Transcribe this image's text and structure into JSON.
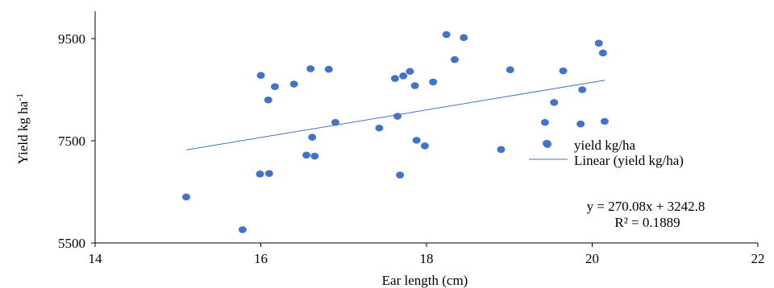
{
  "chart_data": {
    "type": "scatter",
    "xlabel": "Ear length (cm)",
    "ylabel_main": "Yield kg ha",
    "ylabel_sup": "-1",
    "xlim": [
      14,
      22
    ],
    "ylim": [
      5500,
      10000
    ],
    "xticks": [
      14,
      16,
      18,
      20,
      22
    ],
    "yticks": [
      5500,
      7500,
      9500
    ],
    "grid": false,
    "legend_position": "right",
    "series": [
      {
        "name": "yield kg/ha",
        "color": "#4472C4",
        "x": [
          15.1,
          15.78,
          15.99,
          16.0,
          16.09,
          16.1,
          16.17,
          16.4,
          16.55,
          16.6,
          16.62,
          16.65,
          16.82,
          16.9,
          17.43,
          17.62,
          17.65,
          17.68,
          17.72,
          17.8,
          17.86,
          17.88,
          17.98,
          18.08,
          18.24,
          18.34,
          18.45,
          18.9,
          19.01,
          19.43,
          19.45,
          19.54,
          19.65,
          19.86,
          19.88,
          20.08,
          20.13,
          20.15
        ],
        "y": [
          6400,
          5760,
          6850,
          8780,
          8300,
          6860,
          8560,
          8610,
          7220,
          8910,
          7570,
          7200,
          8900,
          7860,
          7750,
          8720,
          7980,
          6830,
          8770,
          8860,
          8580,
          7510,
          7400,
          8650,
          9580,
          9090,
          9520,
          7330,
          8890,
          7860,
          7450,
          8250,
          8870,
          7830,
          8500,
          9410,
          9220,
          7880
        ]
      }
    ],
    "trendline": {
      "name": "Linear (yield kg/ha)",
      "color": "#4472C4",
      "slope": 270.08,
      "intercept": 3242.8,
      "x_range": [
        15.1,
        20.15
      ]
    },
    "equation": "y = 270.08x + 3242.8",
    "r_squared": "R² = 0.1889"
  }
}
